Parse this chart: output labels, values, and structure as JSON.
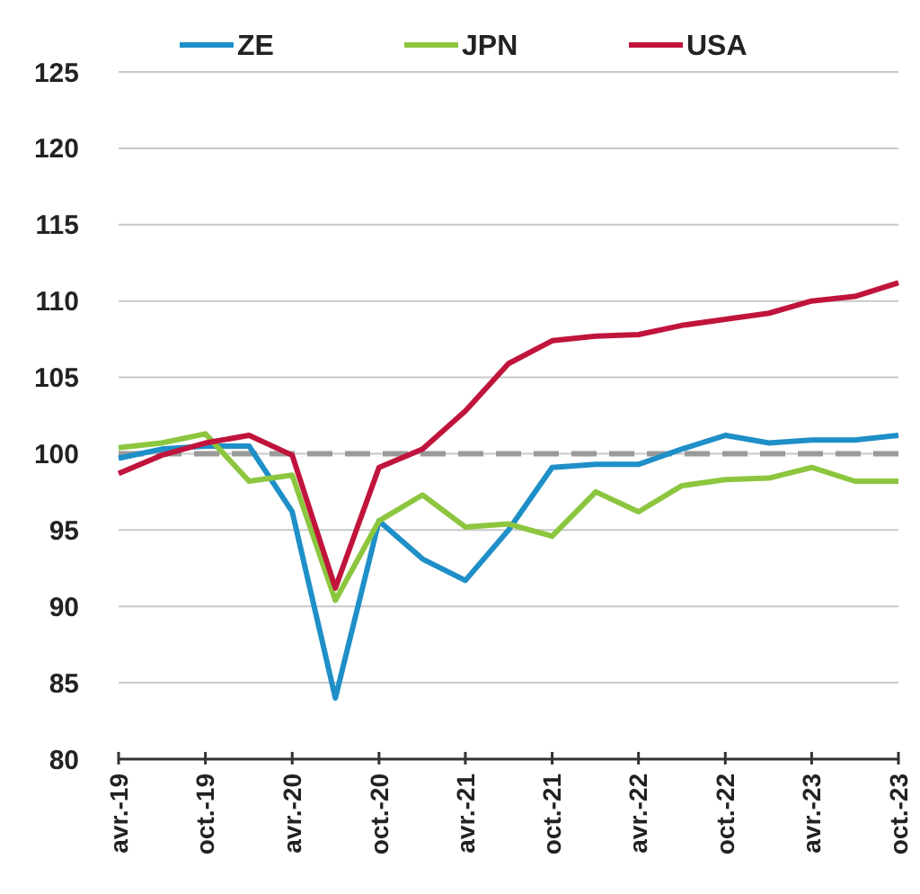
{
  "chart_data": {
    "type": "line",
    "x": [
      "2019-04",
      "2019-07",
      "2019-10",
      "2020-01",
      "2020-04",
      "2020-07",
      "2020-10",
      "2021-01",
      "2021-04",
      "2021-07",
      "2021-10",
      "2022-01",
      "2022-04",
      "2022-07",
      "2022-10",
      "2023-01",
      "2023-04",
      "2023-07",
      "2023-10"
    ],
    "series": [
      {
        "name": "ZE",
        "color": "#1f8fc8",
        "values": [
          99.7,
          100.3,
          100.5,
          100.5,
          96.2,
          84,
          95.6,
          93.1,
          91.7,
          95,
          99.1,
          99.3,
          99.3,
          100.3,
          101.2,
          100.7,
          100.9,
          100.9,
          101.2
        ]
      },
      {
        "name": "JPN",
        "color": "#8cc63f",
        "values": [
          100.4,
          100.7,
          101.3,
          98.2,
          98.6,
          90.4,
          95.6,
          97.3,
          95.2,
          95.4,
          94.6,
          97.5,
          96.2,
          97.9,
          98.3,
          98.4,
          99.1,
          98.2,
          98.2
        ]
      },
      {
        "name": "USA",
        "color": "#c0143c",
        "values": [
          98.7,
          99.9,
          100.7,
          101.2,
          99.9,
          91.2,
          99.1,
          100.3,
          102.8,
          105.9,
          107.4,
          107.7,
          107.8,
          108.4,
          108.8,
          109.2,
          110,
          110.3,
          111.2
        ]
      }
    ],
    "xlim": [
      "2019-04",
      "2023-10"
    ],
    "xticks": [
      {
        "value": "2019-04",
        "label": "avr.-19"
      },
      {
        "value": "2019-10",
        "label": "oct.-19"
      },
      {
        "value": "2020-04",
        "label": "avr.-20"
      },
      {
        "value": "2020-10",
        "label": "oct.-20"
      },
      {
        "value": "2021-04",
        "label": "avr.-21"
      },
      {
        "value": "2021-10",
        "label": "oct.-21"
      },
      {
        "value": "2022-04",
        "label": "avr.-22"
      },
      {
        "value": "2022-10",
        "label": "oct.-22"
      },
      {
        "value": "2023-04",
        "label": "avr.-23"
      },
      {
        "value": "2023-10",
        "label": "oct.-23"
      }
    ],
    "ylim": [
      80,
      125
    ],
    "yticks": [
      80,
      85,
      90,
      95,
      100,
      105,
      110,
      115,
      120,
      125
    ],
    "grid": "y",
    "legend": "top",
    "marker": "none",
    "line_style": "solid",
    "ref_lines": [
      {
        "axis": "y",
        "value": 100,
        "color": "#9a9a9a",
        "line_style": "dashed"
      }
    ]
  }
}
